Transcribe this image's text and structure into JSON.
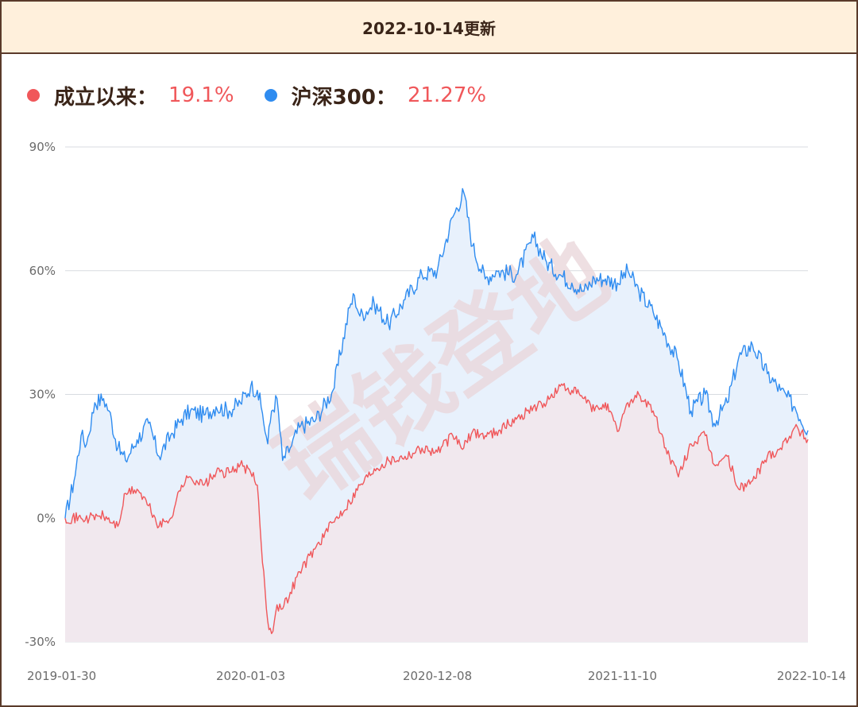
{
  "header": {
    "title": "2022-10-14更新"
  },
  "colors": {
    "fund": "#f0575a",
    "index": "#2f8cf0",
    "value_text": "#f0575a",
    "grid": "#d8dbe0",
    "axis_text": "#6b6b6b",
    "fund_fill": "#f1e8ee",
    "index_fill": "#e8f1fc",
    "watermark": "#ead8dc"
  },
  "watermark_text": "瑞钱登地",
  "chart_data": {
    "type": "line",
    "x_ticks": [
      "2019-01-30",
      "2020-01-03",
      "2020-12-08",
      "2021-11-10",
      "2022-10-14"
    ],
    "y_ticks": [
      "90%",
      "60%",
      "30%",
      "0%",
      "-30%"
    ],
    "ylim": [
      -30,
      90
    ],
    "xlim": [
      "2019-01-30",
      "2022-10-14"
    ],
    "grid": true,
    "legend_position": "top-left",
    "series": [
      {
        "name": "成立以来",
        "final_value_label": "19.1%",
        "color_key": "fund",
        "x": [
          "2019-01-30",
          "2019-02-28",
          "2019-03-15",
          "2019-04-01",
          "2019-04-10",
          "2019-05-06",
          "2019-05-20",
          "2019-06-10",
          "2019-07-01",
          "2019-07-20",
          "2019-08-10",
          "2019-08-30",
          "2019-09-15",
          "2019-10-10",
          "2019-11-01",
          "2019-11-25",
          "2019-12-15",
          "2020-01-03",
          "2020-01-15",
          "2020-01-22",
          "2020-02-03",
          "2020-02-10",
          "2020-02-20",
          "2020-03-01",
          "2020-03-15",
          "2020-04-01",
          "2020-05-01",
          "2020-06-01",
          "2020-07-01",
          "2020-07-20",
          "2020-08-15",
          "2020-09-10",
          "2020-10-10",
          "2020-11-10",
          "2020-12-08",
          "2021-01-05",
          "2021-01-25",
          "2021-02-10",
          "2021-03-05",
          "2021-03-25",
          "2021-05-01",
          "2021-06-01",
          "2021-06-25",
          "2021-07-20",
          "2021-08-10",
          "2021-09-01",
          "2021-09-20",
          "2021-10-10",
          "2021-11-01",
          "2021-11-20",
          "2021-12-10",
          "2022-01-05",
          "2022-01-28",
          "2022-02-20",
          "2022-03-15",
          "2022-04-10",
          "2022-04-26",
          "2022-05-20",
          "2022-06-10",
          "2022-07-05",
          "2022-08-01",
          "2022-08-25",
          "2022-09-20",
          "2022-10-14"
        ],
        "y": [
          0,
          0,
          0,
          0.5,
          0.5,
          -2,
          6,
          7,
          3,
          -2,
          0,
          8,
          10,
          8,
          11,
          11,
          13,
          11,
          8,
          -6,
          -25,
          -28,
          -21,
          -22,
          -18,
          -13,
          -7,
          -1,
          4,
          8,
          12,
          14,
          15,
          17,
          16,
          20,
          17,
          21,
          20,
          21,
          24,
          27,
          28,
          32,
          31,
          29,
          26,
          28,
          21,
          28,
          30,
          26,
          17,
          10,
          18,
          20,
          13,
          15,
          7,
          9,
          15,
          17,
          22,
          19.1
        ]
      },
      {
        "name": "沪深300",
        "final_value_label": "21.27%",
        "color_key": "index",
        "x": [
          "2019-01-30",
          "2019-02-15",
          "2019-02-28",
          "2019-03-10",
          "2019-03-25",
          "2019-04-10",
          "2019-04-20",
          "2019-05-06",
          "2019-05-20",
          "2019-06-10",
          "2019-07-01",
          "2019-07-20",
          "2019-08-10",
          "2019-08-30",
          "2019-09-15",
          "2019-10-10",
          "2019-11-01",
          "2019-11-25",
          "2019-12-15",
          "2020-01-03",
          "2020-01-15",
          "2020-01-22",
          "2020-02-03",
          "2020-02-10",
          "2020-02-20",
          "2020-03-01",
          "2020-03-15",
          "2020-04-01",
          "2020-05-01",
          "2020-06-01",
          "2020-07-01",
          "2020-07-10",
          "2020-07-20",
          "2020-08-15",
          "2020-09-10",
          "2020-10-10",
          "2020-11-10",
          "2020-12-08",
          "2021-01-05",
          "2021-01-25",
          "2021-02-10",
          "2021-03-05",
          "2021-03-25",
          "2021-05-01",
          "2021-06-01",
          "2021-06-25",
          "2021-07-20",
          "2021-08-10",
          "2021-09-01",
          "2021-09-20",
          "2021-10-10",
          "2021-11-01",
          "2021-11-20",
          "2021-12-10",
          "2022-01-05",
          "2022-01-28",
          "2022-02-20",
          "2022-03-15",
          "2022-04-10",
          "2022-04-26",
          "2022-05-20",
          "2022-06-10",
          "2022-07-05",
          "2022-08-01",
          "2022-08-25",
          "2022-09-20",
          "2022-10-14"
        ],
        "y": [
          0,
          9,
          20,
          18,
          28,
          29,
          26,
          17,
          14,
          19,
          23,
          15,
          20,
          24,
          26,
          25,
          27,
          26,
          28,
          32,
          31,
          27,
          18,
          26,
          29,
          14,
          17,
          22,
          24,
          31,
          51,
          54,
          49,
          52,
          47,
          53,
          59,
          60,
          73,
          79,
          66,
          58,
          60,
          59,
          68,
          62,
          59,
          57,
          55,
          58,
          58,
          57,
          60,
          55,
          50,
          44,
          38,
          26,
          30,
          23,
          28,
          39,
          42,
          35,
          31,
          27,
          21.27
        ]
      }
    ]
  }
}
